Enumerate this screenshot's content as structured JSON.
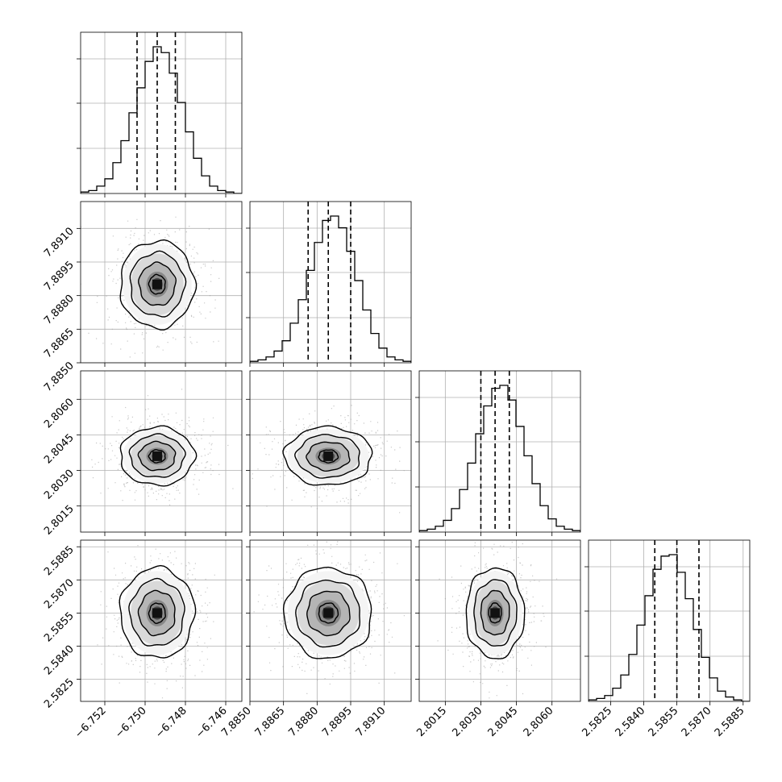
{
  "chart_data": {
    "type": "corner",
    "parameters": [
      {
        "ticks": [
          -6.752,
          -6.75,
          -6.748,
          -6.746
        ],
        "tick_labels": [
          "−6.752",
          "−6.750",
          "−6.748",
          "−6.746"
        ],
        "range": [
          -6.7532,
          -6.7452
        ],
        "quantiles": [
          -6.7504,
          -6.7494,
          -6.7485
        ],
        "median": -6.7494,
        "sigma": 0.0009
      },
      {
        "ticks": [
          7.885,
          7.8865,
          7.888,
          7.8895,
          7.891
        ],
        "tick_labels": [
          "7.8850",
          "7.8865",
          "7.8880",
          "7.8895",
          "7.8910"
        ],
        "range": [
          7.885,
          7.8922
        ],
        "quantiles": [
          7.8876,
          7.8885,
          7.8895
        ],
        "median": 7.8885,
        "sigma": 0.00095
      },
      {
        "ticks": [
          2.8015,
          2.803,
          2.8045,
          2.806
        ],
        "tick_labels": [
          "2.8015",
          "2.8030",
          "2.8045",
          "2.8060"
        ],
        "range": [
          2.8004,
          2.8072
        ],
        "quantiles": [
          2.803,
          2.8036,
          2.8042
        ],
        "median": 2.8036,
        "sigma": 0.0006
      },
      {
        "ticks": [
          2.5825,
          2.584,
          2.5855,
          2.587,
          2.5885
        ],
        "tick_labels": [
          "2.5825",
          "2.5840",
          "2.5855",
          "2.5870",
          "2.5885"
        ],
        "range": [
          2.5815,
          2.5888
        ],
        "quantiles": [
          2.5845,
          2.5855,
          2.5865
        ],
        "median": 2.5855,
        "sigma": 0.001
      }
    ],
    "histograms": [
      [
        1,
        2,
        5,
        10,
        21,
        36,
        55,
        72,
        90,
        100,
        96,
        82,
        62,
        42,
        24,
        12,
        5,
        2,
        1,
        0
      ],
      [
        1,
        2,
        4,
        8,
        15,
        27,
        43,
        63,
        82,
        97,
        100,
        92,
        76,
        56,
        36,
        20,
        10,
        4,
        2,
        1
      ],
      [
        1,
        2,
        4,
        8,
        16,
        29,
        47,
        67,
        86,
        98,
        100,
        90,
        72,
        52,
        33,
        18,
        9,
        4,
        2,
        1
      ],
      [
        1,
        2,
        4,
        9,
        18,
        32,
        52,
        72,
        90,
        99,
        100,
        88,
        70,
        49,
        30,
        16,
        7,
        3,
        1,
        0
      ]
    ],
    "grid": true,
    "contour_levels": [
      "0.5σ",
      "1σ",
      "1.5σ",
      "2σ"
    ]
  }
}
